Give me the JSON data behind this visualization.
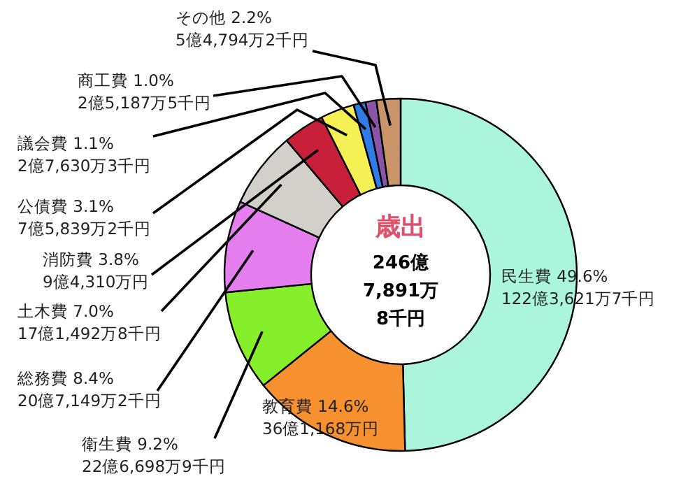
{
  "chart_data": {
    "type": "donut",
    "title": "歳出",
    "annotations": [
      "246億\n7,891万\n8千円"
    ],
    "categories": [
      "民生費",
      "教育費",
      "衛生費",
      "総務費",
      "土木費",
      "消防費",
      "公債費",
      "議会費",
      "商工費",
      "その他"
    ],
    "values": [
      49.6,
      14.6,
      9.2,
      8.4,
      7.0,
      3.8,
      3.1,
      1.1,
      1.0,
      2.2
    ],
    "value_labels": [
      "49.6%\n122億3,621万7千円",
      "14.6%\n36億1,168万円",
      "9.2%\n22億6,698万9千円",
      "8.4%\n20億7,149万2千円",
      "7.0%\n17億1,492万8千円",
      "3.8%\n9億4,310万円",
      "3.1%\n7億5,839万2千円",
      "1.1%\n2億7,630万3千円",
      "1.0%\n2億5,187万5千円",
      "2.2%\n5億4,794万2千円"
    ],
    "colors": [
      "#aaf5dc",
      "#f7902e",
      "#86ee2a",
      "#e57ff0",
      "#d3cfcb",
      "#c8203a",
      "#f5f053",
      "#2f7be8",
      "#8a55a8",
      "#c89468"
    ]
  }
}
